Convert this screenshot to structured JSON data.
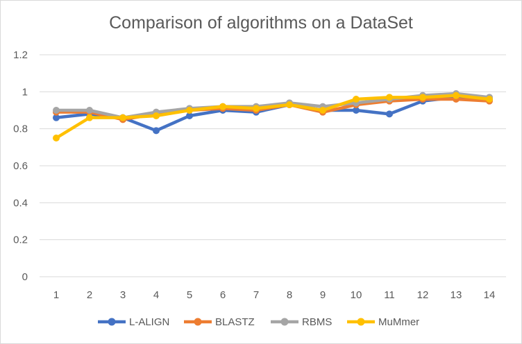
{
  "chart_data": {
    "type": "line",
    "title": "Comparison of algorithms on a DataSet",
    "xlabel": "",
    "ylabel": "",
    "x": [
      "1",
      "2",
      "3",
      "4",
      "5",
      "6",
      "7",
      "8",
      "9",
      "10",
      "11",
      "12",
      "13",
      "14"
    ],
    "ylim": [
      0,
      1.2
    ],
    "yticks": [
      "0",
      "0.2",
      "0.4",
      "0.6",
      "0.8",
      "1",
      "1.2"
    ],
    "grid": true,
    "legend_position": "bottom",
    "series": [
      {
        "name": "L-ALIGN",
        "color": "#4472c4",
        "values": [
          0.86,
          0.88,
          0.86,
          0.79,
          0.87,
          0.9,
          0.89,
          0.93,
          0.9,
          0.9,
          0.88,
          0.95,
          0.97,
          0.96
        ]
      },
      {
        "name": "BLASTZ",
        "color": "#ed7d31",
        "values": [
          0.89,
          0.89,
          0.85,
          0.88,
          0.9,
          0.91,
          0.9,
          0.93,
          0.89,
          0.93,
          0.95,
          0.96,
          0.96,
          0.95
        ]
      },
      {
        "name": "RBMS",
        "color": "#a5a5a5",
        "values": [
          0.9,
          0.9,
          0.86,
          0.89,
          0.91,
          0.92,
          0.92,
          0.94,
          0.92,
          0.94,
          0.96,
          0.98,
          0.99,
          0.97
        ]
      },
      {
        "name": "MuMmer",
        "color": "#ffc000",
        "values": [
          0.75,
          0.86,
          0.86,
          0.87,
          0.9,
          0.92,
          0.91,
          0.93,
          0.9,
          0.96,
          0.97,
          0.97,
          0.98,
          0.96
        ]
      }
    ]
  }
}
